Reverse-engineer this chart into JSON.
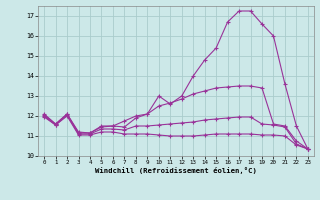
{
  "xlabel": "Windchill (Refroidissement éolien,°C)",
  "background_color": "#cce8e8",
  "grid_color": "#aacccc",
  "line_color": "#993399",
  "x": [
    0,
    1,
    2,
    3,
    4,
    5,
    6,
    7,
    8,
    9,
    10,
    11,
    12,
    13,
    14,
    15,
    16,
    17,
    18,
    19,
    20,
    21,
    22,
    23
  ],
  "line1": [
    12.1,
    11.6,
    12.1,
    11.2,
    11.15,
    11.5,
    11.5,
    11.75,
    12.0,
    12.1,
    13.0,
    12.6,
    13.0,
    14.0,
    14.8,
    15.4,
    16.7,
    17.25,
    17.25,
    16.6,
    16.0,
    13.6,
    11.5,
    10.35
  ],
  "line2": [
    12.05,
    11.6,
    12.1,
    11.15,
    11.15,
    11.45,
    11.5,
    11.45,
    11.9,
    12.1,
    12.5,
    12.65,
    12.85,
    13.1,
    13.25,
    13.4,
    13.45,
    13.5,
    13.5,
    13.4,
    11.6,
    11.5,
    10.75,
    10.35
  ],
  "line3": [
    12.0,
    11.55,
    12.05,
    11.1,
    11.1,
    11.35,
    11.35,
    11.3,
    11.5,
    11.5,
    11.55,
    11.6,
    11.65,
    11.7,
    11.8,
    11.85,
    11.9,
    11.95,
    11.95,
    11.6,
    11.55,
    11.45,
    10.6,
    10.35
  ],
  "line4": [
    11.95,
    11.55,
    12.0,
    11.05,
    11.05,
    11.2,
    11.2,
    11.1,
    11.1,
    11.1,
    11.05,
    11.0,
    11.0,
    11.0,
    11.05,
    11.1,
    11.1,
    11.1,
    11.1,
    11.05,
    11.05,
    11.0,
    10.55,
    10.35
  ],
  "ylim": [
    10,
    17.5
  ],
  "yticks": [
    10,
    11,
    12,
    13,
    14,
    15,
    16,
    17
  ],
  "xlim": [
    -0.5,
    23.5
  ]
}
